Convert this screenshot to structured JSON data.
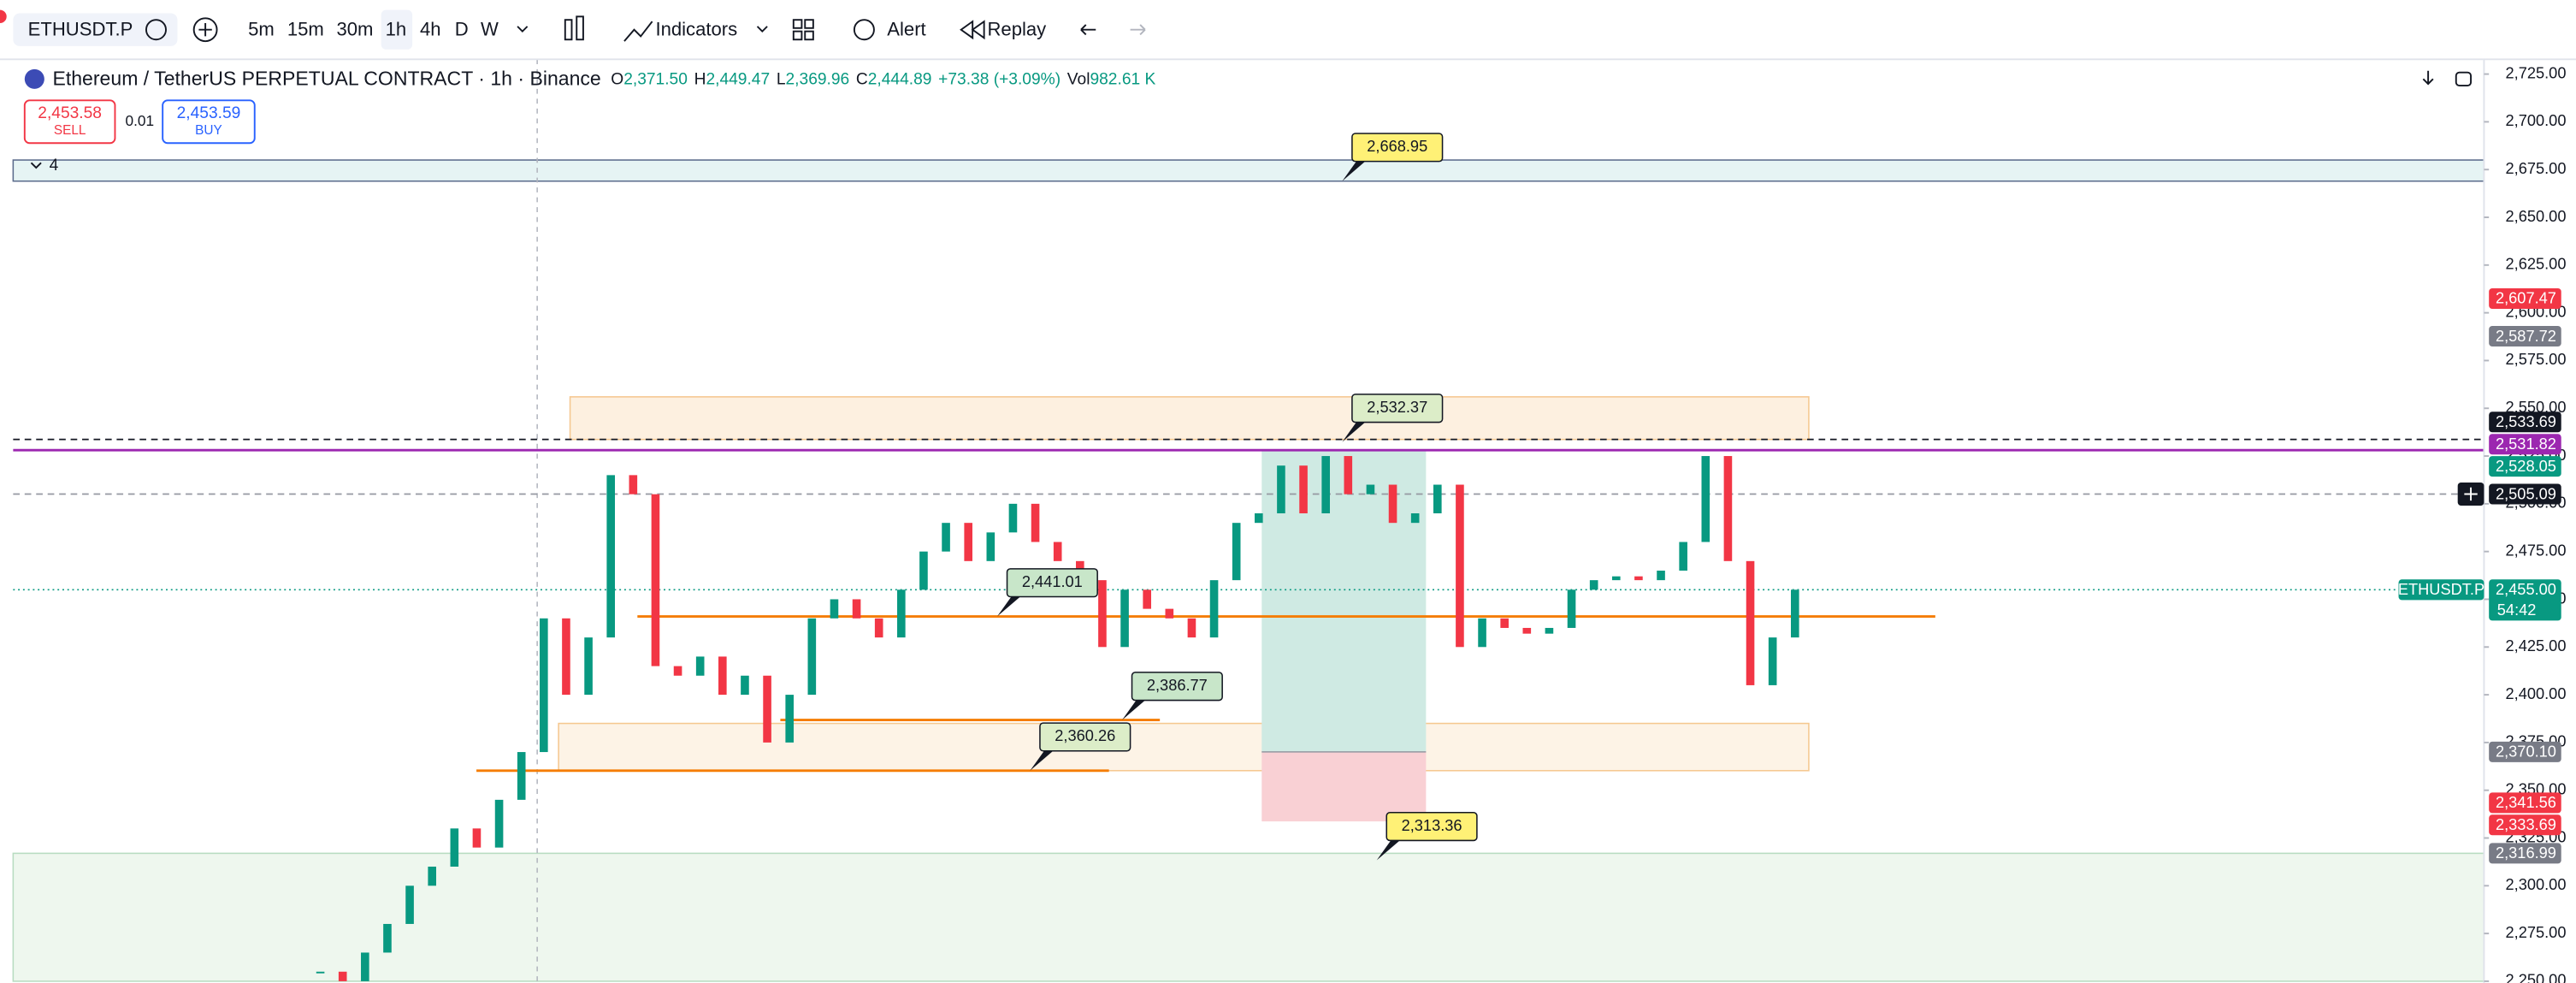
{
  "toolbar": {
    "symbol": "ETHUSDT.P",
    "intervals": [
      "5m",
      "15m",
      "30m",
      "1h",
      "4h",
      "D",
      "W"
    ],
    "indicators": "Indicators",
    "alert": "Alert",
    "replay": "Replay"
  },
  "legend": {
    "title": "Ethereum / TetherUS PERPETUAL CONTRACT · 1h · Binance",
    "o_label": "O",
    "o": "2,371.50",
    "h_label": "H",
    "h": "2,449.47",
    "l_label": "L",
    "l": "2,369.96",
    "c_label": "C",
    "c": "2,444.89",
    "change": "+73.38 (+3.09%)",
    "vol_label": "Vol",
    "vol": "982.61 K"
  },
  "order_panel": {
    "sell_price": "2,453.58",
    "sell": "SELL",
    "qty": "0.01",
    "buy_price": "2,453.59",
    "buy": "BUY"
  },
  "drawing_group": "4",
  "chart": {
    "ylim": [
      2250,
      2725
    ],
    "yticks": [
      {
        "value": 2250,
        "label": "2,250.00"
      },
      {
        "value": 2275,
        "label": "2,275.00"
      },
      {
        "value": 2300,
        "label": "2,300.00"
      },
      {
        "value": 2325,
        "label": "2,325.00"
      },
      {
        "value": 2350,
        "label": "2,350.00"
      },
      {
        "value": 2375,
        "label": "2,375.00"
      },
      {
        "value": 2400,
        "label": "2,400.00"
      },
      {
        "value": 2425,
        "label": "2,425.00"
      },
      {
        "value": 2450,
        "label": "2,450.00"
      },
      {
        "value": 2475,
        "label": "2,475.00"
      },
      {
        "value": 2500,
        "label": "2,500.00"
      },
      {
        "value": 2525,
        "label": "2,525.00"
      },
      {
        "value": 2550,
        "label": "2,550.00"
      },
      {
        "value": 2575,
        "label": "2,575.00"
      },
      {
        "value": 2600,
        "label": "2,600.00"
      },
      {
        "value": 2625,
        "label": "2,625.00"
      },
      {
        "value": 2650,
        "label": "2,650.00"
      },
      {
        "value": 2675,
        "label": "2,675.00"
      },
      {
        "value": 2700,
        "label": "2,700.00"
      },
      {
        "value": 2725,
        "label": "2,725.00"
      }
    ],
    "closes": [
      2255,
      2250,
      2265,
      2280,
      2300,
      2310,
      2330,
      2320,
      2345,
      2370,
      2440,
      2400,
      2430,
      2515,
      2505,
      2415,
      2410,
      2420,
      2400,
      2410,
      2375,
      2400,
      2440,
      2450,
      2440,
      2430,
      2455,
      2475,
      2490,
      2470,
      2485,
      2500,
      2480,
      2470,
      2460,
      2425,
      2455,
      2445,
      2440,
      2430,
      2460,
      2490,
      2495,
      2520,
      2495,
      2525,
      2505,
      2510,
      2490,
      2495,
      2510,
      2425,
      2440,
      2435,
      2432,
      2435,
      2455,
      2460,
      2462,
      2460,
      2465,
      2480,
      2525,
      2470,
      2405,
      2430,
      2455
    ],
    "up_color": "#089981",
    "down_color": "#f23645",
    "zones": [
      {
        "low": 2668.95,
        "high": 2680,
        "color": "#e6f4f4",
        "stroke": "#5b6b8c"
      },
      {
        "low": 2533.69,
        "high": 2556,
        "color": "#fdf0e0",
        "stroke": "#f5c78f"
      },
      {
        "low": 2360.26,
        "high": 2385,
        "color": "#fdf3e6",
        "stroke": "#f5c78f"
      },
      {
        "low": 2250,
        "high": 2316.99,
        "color": "#eef7ee",
        "stroke": "#b7dcc0"
      }
    ],
    "position": {
      "entry": 2370.1,
      "target": 2528.05,
      "stop": 2333.69,
      "profit_color": "#cfeae3",
      "loss_color": "#f9d0d4"
    },
    "levels": [
      {
        "value": 2528.05,
        "color": "#9c27b0",
        "style": "solid"
      },
      {
        "value": 2533.69,
        "color": "#131722",
        "style": "dash"
      },
      {
        "value": 2505.09,
        "color": "#9598a1",
        "style": "dash"
      },
      {
        "value": 2455.0,
        "color": "#089981",
        "style": "dot"
      },
      {
        "value": 2441.01,
        "color": "#f57c00",
        "style": "solid"
      },
      {
        "value": 2386.77,
        "color": "#f57c00",
        "style": "solid"
      },
      {
        "value": 2360.26,
        "color": "#f57c00",
        "style": "solid"
      }
    ],
    "callouts": [
      {
        "value": 2668.95,
        "label": "2,668.95",
        "color": "#fff176"
      },
      {
        "value": 2532.37,
        "label": "2,532.37",
        "color": "#dcedc8"
      },
      {
        "value": 2441.01,
        "label": "2,441.01",
        "color": "#c8e6c9"
      },
      {
        "value": 2386.77,
        "label": "2,386.77",
        "color": "#c8e6c9"
      },
      {
        "value": 2360.26,
        "label": "2,360.26",
        "color": "#dcedc8"
      },
      {
        "value": 2313.36,
        "label": "2,313.36",
        "color": "#fff176"
      }
    ],
    "price_tags": [
      {
        "value": 2607.47,
        "label": "2,607.47",
        "color": "#f23645"
      },
      {
        "value": 2587.72,
        "label": "2,587.72",
        "color": "#787b86"
      },
      {
        "value": 2533.69,
        "label": "2,533.69",
        "color": "#131722"
      },
      {
        "value": 2531.82,
        "label": "2,531.82",
        "color": "#9c27b0"
      },
      {
        "value": 2528.05,
        "label": "2,528.05",
        "color": "#089981"
      },
      {
        "value": 2505.09,
        "label": "2,505.09",
        "color": "#131722"
      },
      {
        "value": 2455.0,
        "label": "2,455.00",
        "color": "#089981",
        "sub": "54:42",
        "name": "ETHUSDT.P"
      },
      {
        "value": 2370.1,
        "label": "2,370.10",
        "color": "#787b86"
      },
      {
        "value": 2341.56,
        "label": "2,341.56",
        "color": "#f23645"
      },
      {
        "value": 2333.69,
        "label": "2,333.69",
        "color": "#f23645"
      },
      {
        "value": 2316.99,
        "label": "2,316.99",
        "color": "#787b86"
      }
    ]
  }
}
